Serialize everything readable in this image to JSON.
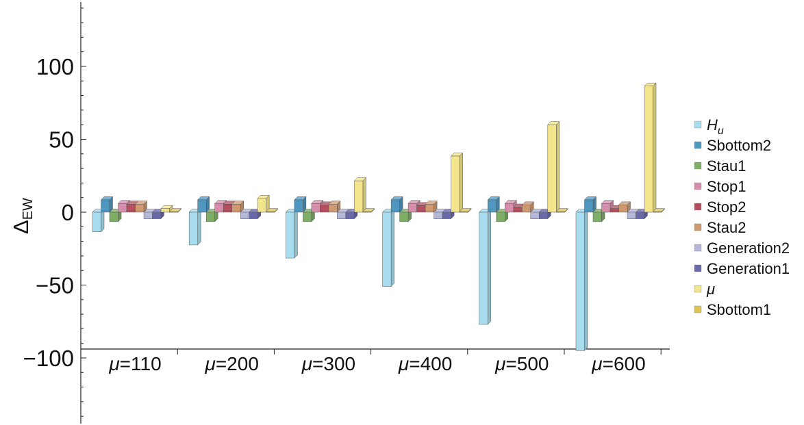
{
  "chart_data": {
    "type": "bar",
    "ylabel": "Δ",
    "ylabel_subscript": "EW",
    "ylim": [
      -145,
      145
    ],
    "y_major_ticks": [
      100,
      50,
      0,
      -50,
      -100
    ],
    "y_tick_labels": [
      "100",
      "50",
      "0",
      "−50",
      "−100"
    ],
    "category_prefix": "μ",
    "categories": [
      "=110",
      "=200",
      "=300",
      "=400",
      "=500",
      "=600"
    ],
    "legend_position": "right",
    "grid": false,
    "series": [
      {
        "name": "H",
        "name_sub": "u",
        "color": "#a8dcef",
        "values": [
          -13.5,
          -22.5,
          -31.5,
          -51,
          -77,
          -95
        ]
      },
      {
        "name": "Sbottom2",
        "color": "#4f97bf",
        "values": [
          8.5,
          8.5,
          8.5,
          8.5,
          8.5,
          8.5
        ]
      },
      {
        "name": "Stau1",
        "color": "#7fae67",
        "values": [
          -6.5,
          -6.5,
          -6.5,
          -6.5,
          -6.5,
          -6.5
        ]
      },
      {
        "name": "Stop1",
        "color": "#d58fad",
        "values": [
          6,
          6,
          6,
          6,
          6,
          6
        ]
      },
      {
        "name": "Stop2",
        "color": "#b34f5f",
        "values": [
          5.5,
          5.5,
          5,
          4.5,
          3.5,
          2.5
        ]
      },
      {
        "name": "Stau2",
        "color": "#cf9a72",
        "values": [
          5.5,
          5.5,
          5.5,
          5.5,
          5,
          5
        ]
      },
      {
        "name": "Generation2",
        "color": "#b6b8d9",
        "values": [
          -4.5,
          -4.5,
          -4.5,
          -4.5,
          -4.5,
          -4.5
        ]
      },
      {
        "name": "Generation1",
        "color": "#6a6aa8",
        "values": [
          -4.5,
          -4.5,
          -4.5,
          -4.5,
          -4.5,
          -4.5
        ]
      },
      {
        "name": "μ",
        "color": "#f2e58c",
        "values": [
          2.5,
          9.5,
          21.5,
          38.5,
          60,
          86.5
        ]
      },
      {
        "name": "Sbottom1",
        "color": "#dcc454",
        "values": [
          0.4,
          0.4,
          0.4,
          0.4,
          0.4,
          0.4
        ]
      }
    ]
  }
}
